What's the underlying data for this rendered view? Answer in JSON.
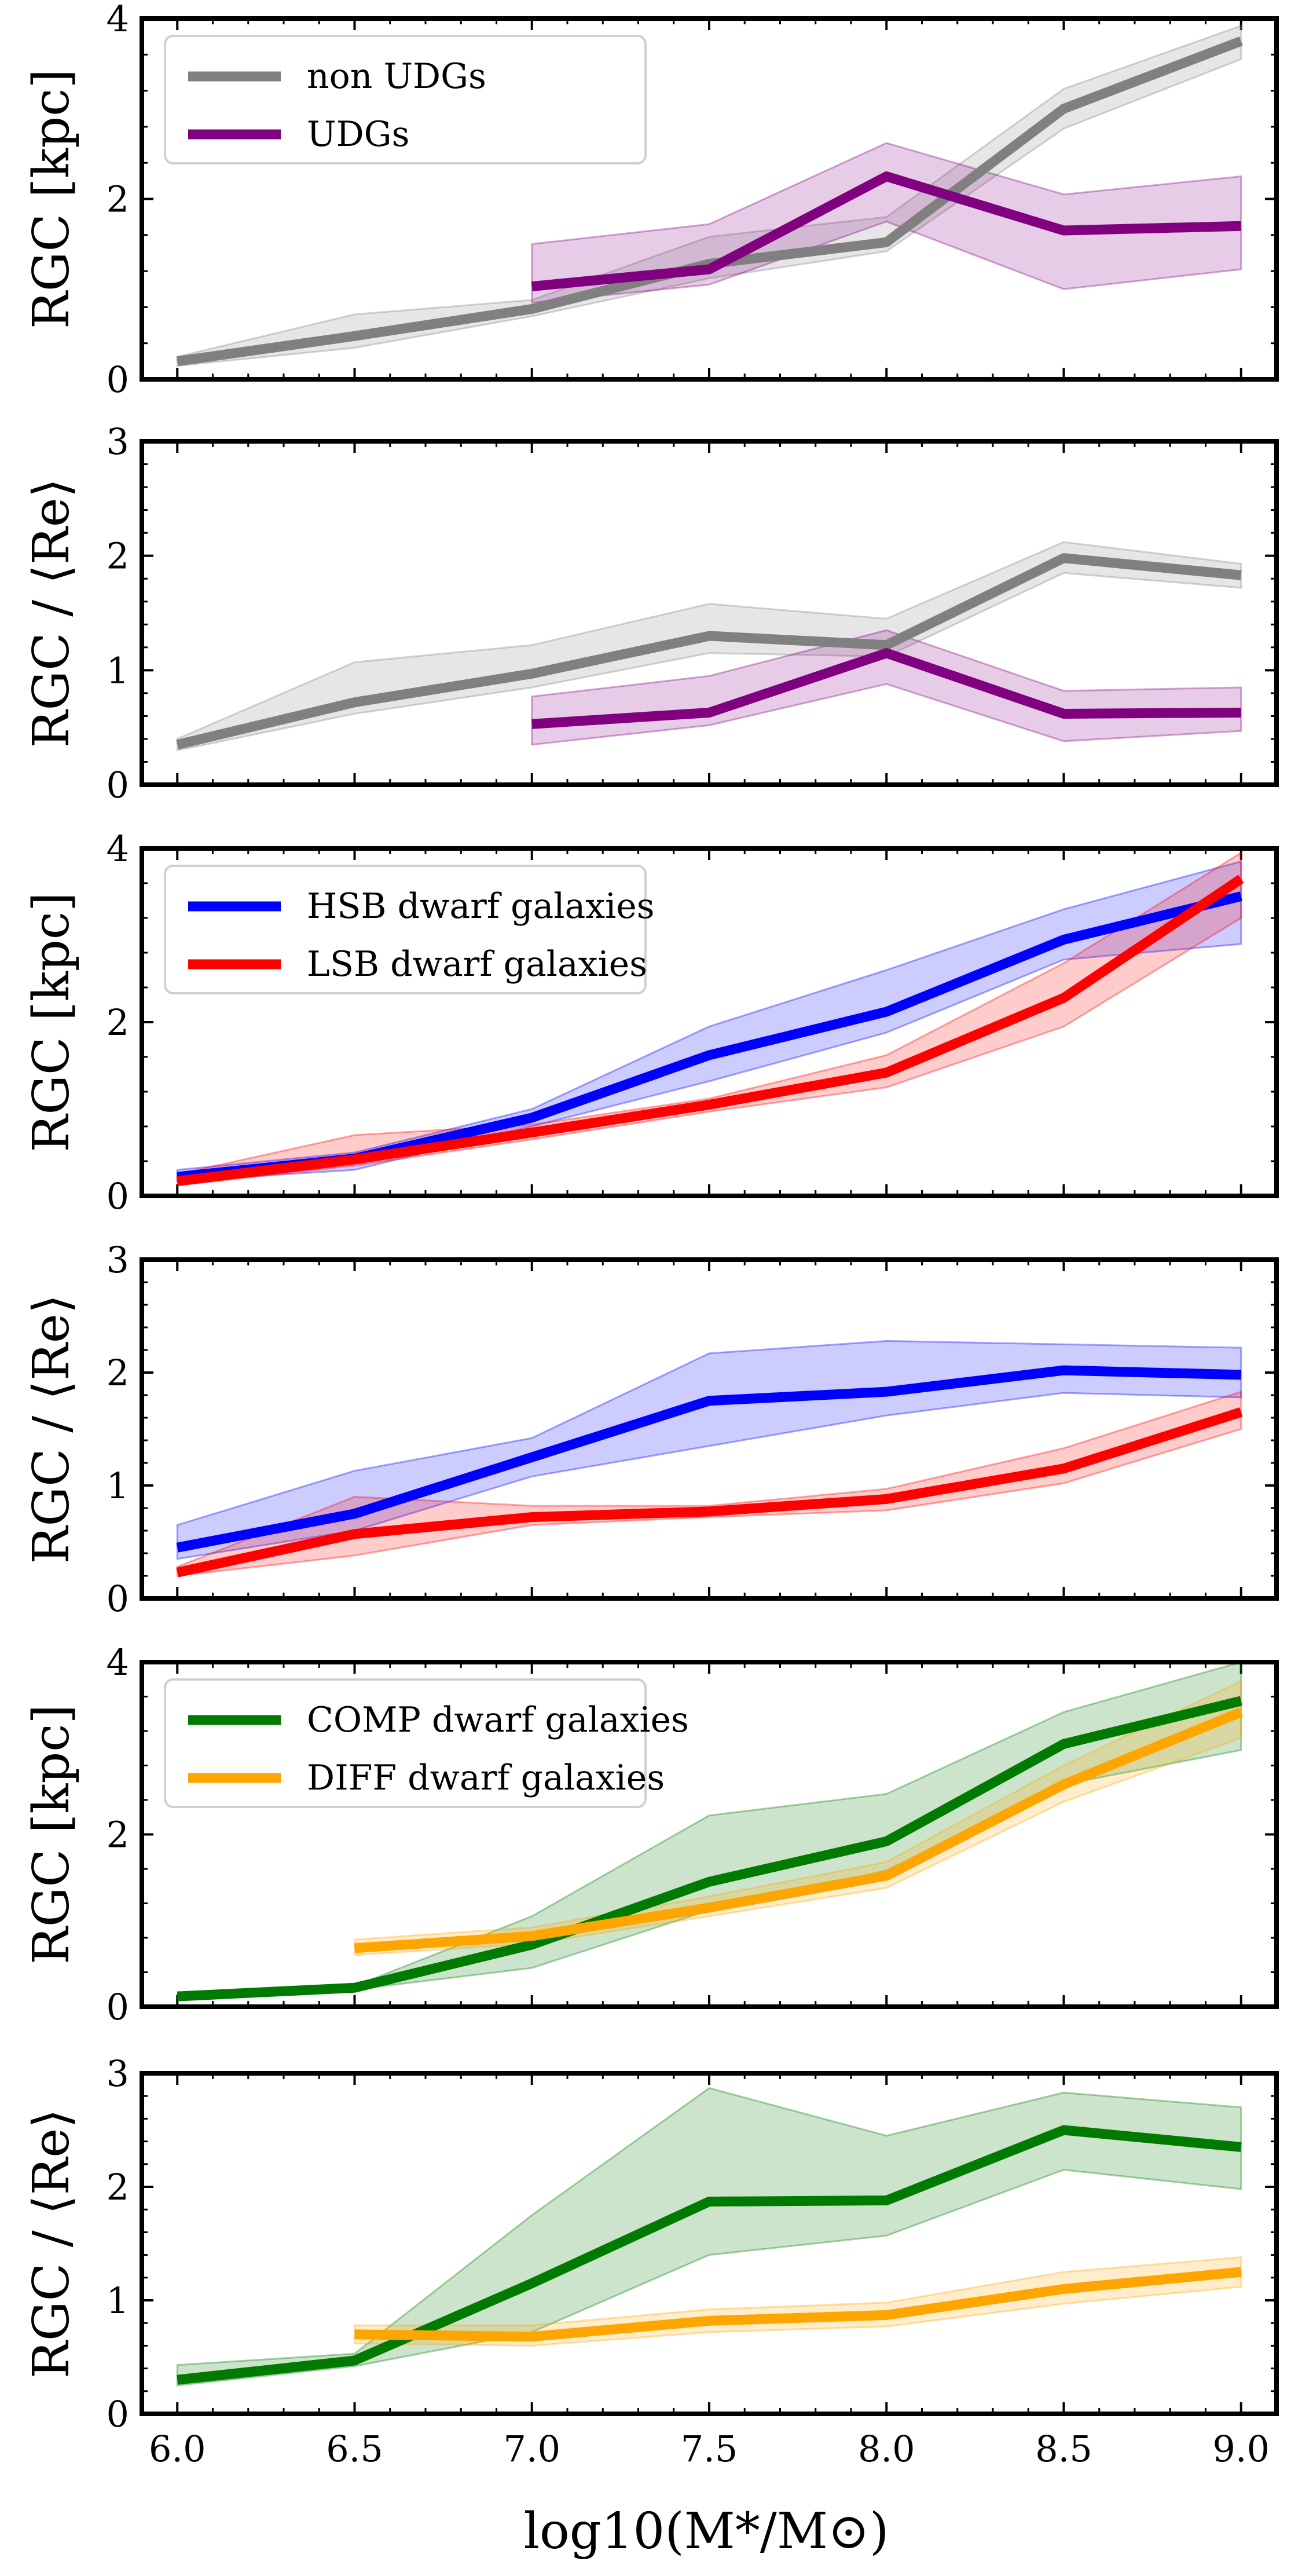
{
  "figure": {
    "xlabel": "log10(M*/M⊙)",
    "xlim": [
      5.9,
      9.1
    ],
    "xticks": [
      6.0,
      6.5,
      7.0,
      7.5,
      8.0,
      8.5,
      9.0
    ],
    "xtick_labels": [
      "6.0",
      "6.5",
      "7.0",
      "7.5",
      "8.0",
      "8.5",
      "9.0"
    ]
  },
  "chart_data": [
    {
      "type": "line",
      "panel": 1,
      "ylabel": "RGC [kpc]",
      "ylim": [
        0,
        4
      ],
      "yticks": [
        0,
        2,
        4
      ],
      "ytick_labels": [
        "0",
        "2",
        "4"
      ],
      "legend": "top-left",
      "series": [
        {
          "name": "non UDGs",
          "color": "#808080",
          "x": [
            6.0,
            6.5,
            7.0,
            7.5,
            8.0,
            8.5,
            9.0
          ],
          "y": [
            0.2,
            0.48,
            0.78,
            1.28,
            1.52,
            3.0,
            3.75
          ],
          "lower": [
            0.15,
            0.35,
            0.7,
            1.12,
            1.42,
            2.78,
            3.55
          ],
          "upper": [
            0.25,
            0.72,
            0.88,
            1.58,
            1.8,
            3.22,
            3.92
          ]
        },
        {
          "name": "UDGs",
          "color": "#800080",
          "x": [
            7.0,
            7.5,
            8.0,
            8.5,
            9.0
          ],
          "y": [
            1.03,
            1.22,
            2.25,
            1.65,
            1.7
          ],
          "lower": [
            0.85,
            1.05,
            1.75,
            1.0,
            1.22
          ],
          "upper": [
            1.5,
            1.72,
            2.62,
            2.05,
            2.25
          ]
        }
      ]
    },
    {
      "type": "line",
      "panel": 2,
      "ylabel": "RGC / ⟨Re⟩",
      "ylim": [
        0,
        3
      ],
      "yticks": [
        0,
        1,
        2,
        3
      ],
      "ytick_labels": [
        "0",
        "1",
        "2",
        "3"
      ],
      "series": [
        {
          "name": "non UDGs",
          "color": "#808080",
          "x": [
            6.0,
            6.5,
            7.0,
            7.5,
            8.0,
            8.5,
            9.0
          ],
          "y": [
            0.35,
            0.72,
            0.97,
            1.3,
            1.22,
            1.98,
            1.83
          ],
          "lower": [
            0.3,
            0.62,
            0.85,
            1.15,
            1.12,
            1.85,
            1.72
          ],
          "upper": [
            0.4,
            1.07,
            1.22,
            1.58,
            1.45,
            2.12,
            1.93
          ]
        },
        {
          "name": "UDGs",
          "color": "#800080",
          "x": [
            7.0,
            7.5,
            8.0,
            8.5,
            9.0
          ],
          "y": [
            0.53,
            0.63,
            1.15,
            0.62,
            0.63
          ],
          "lower": [
            0.35,
            0.52,
            0.88,
            0.38,
            0.47
          ],
          "upper": [
            0.77,
            0.95,
            1.35,
            0.82,
            0.85
          ]
        }
      ]
    },
    {
      "type": "line",
      "panel": 3,
      "ylabel": "RGC [kpc]",
      "ylim": [
        0,
        4
      ],
      "yticks": [
        0,
        2,
        4
      ],
      "ytick_labels": [
        "0",
        "2",
        "4"
      ],
      "legend": "top-left",
      "series": [
        {
          "name": "HSB dwarf galaxies",
          "color": "#0000ff",
          "x": [
            6.0,
            6.5,
            7.0,
            7.5,
            8.0,
            8.5,
            9.0
          ],
          "y": [
            0.22,
            0.43,
            0.9,
            1.62,
            2.12,
            2.95,
            3.45
          ],
          "lower": [
            0.17,
            0.3,
            0.8,
            1.32,
            1.88,
            2.72,
            2.9
          ],
          "upper": [
            0.3,
            0.5,
            1.0,
            1.95,
            2.6,
            3.3,
            3.85
          ]
        },
        {
          "name": "LSB dwarf galaxies",
          "color": "#ff0000",
          "x": [
            6.0,
            6.5,
            7.0,
            7.5,
            8.0,
            8.5,
            9.0
          ],
          "y": [
            0.17,
            0.42,
            0.73,
            1.05,
            1.42,
            2.28,
            3.65
          ],
          "lower": [
            0.12,
            0.35,
            0.65,
            0.97,
            1.25,
            1.95,
            3.2
          ],
          "upper": [
            0.25,
            0.7,
            0.82,
            1.12,
            1.62,
            2.68,
            3.95
          ]
        }
      ]
    },
    {
      "type": "line",
      "panel": 4,
      "ylabel": "RGC / ⟨Re⟩",
      "ylim": [
        0,
        3
      ],
      "yticks": [
        0,
        1,
        2,
        3
      ],
      "ytick_labels": [
        "0",
        "1",
        "2",
        "3"
      ],
      "series": [
        {
          "name": "HSB dwarf galaxies",
          "color": "#0000ff",
          "x": [
            6.0,
            6.5,
            7.0,
            7.5,
            8.0,
            8.5,
            9.0
          ],
          "y": [
            0.45,
            0.75,
            1.25,
            1.75,
            1.83,
            2.02,
            1.98
          ],
          "lower": [
            0.35,
            0.6,
            1.08,
            1.35,
            1.62,
            1.82,
            1.78
          ],
          "upper": [
            0.65,
            1.13,
            1.42,
            2.17,
            2.28,
            2.25,
            2.22
          ]
        },
        {
          "name": "LSB dwarf galaxies",
          "color": "#ff0000",
          "x": [
            6.0,
            6.5,
            7.0,
            7.5,
            8.0,
            8.5,
            9.0
          ],
          "y": [
            0.23,
            0.57,
            0.72,
            0.77,
            0.88,
            1.15,
            1.65
          ],
          "lower": [
            0.2,
            0.38,
            0.65,
            0.72,
            0.78,
            1.02,
            1.5
          ],
          "upper": [
            0.28,
            0.9,
            0.82,
            0.82,
            0.97,
            1.33,
            1.83
          ]
        }
      ]
    },
    {
      "type": "line",
      "panel": 5,
      "ylabel": "RGC [kpc]",
      "ylim": [
        0,
        4
      ],
      "yticks": [
        0,
        2,
        4
      ],
      "ytick_labels": [
        "0",
        "2",
        "4"
      ],
      "legend": "top-left",
      "series": [
        {
          "name": "COMP dwarf galaxies",
          "color": "#007a00",
          "x": [
            6.0,
            6.5,
            7.0,
            7.5,
            8.0,
            8.5,
            9.0
          ],
          "y": [
            0.12,
            0.22,
            0.72,
            1.45,
            1.92,
            3.05,
            3.55
          ],
          "lower": [
            0.1,
            0.2,
            0.45,
            1.12,
            1.58,
            2.58,
            2.98
          ],
          "upper": [
            0.14,
            0.24,
            1.05,
            2.22,
            2.47,
            3.42,
            4.0
          ]
        },
        {
          "name": "DIFF dwarf galaxies",
          "color": "#ffa500",
          "x": [
            6.5,
            7.0,
            7.5,
            8.0,
            8.5,
            9.0
          ],
          "y": [
            0.68,
            0.82,
            1.15,
            1.52,
            2.58,
            3.42
          ],
          "lower": [
            0.6,
            0.73,
            1.05,
            1.38,
            2.38,
            3.12
          ],
          "upper": [
            0.78,
            0.92,
            1.28,
            1.68,
            2.8,
            3.78
          ]
        }
      ]
    },
    {
      "type": "line",
      "panel": 6,
      "ylabel": "RGC / ⟨Re⟩",
      "ylim": [
        0,
        3
      ],
      "yticks": [
        0,
        1,
        2,
        3
      ],
      "ytick_labels": [
        "0",
        "1",
        "2",
        "3"
      ],
      "series": [
        {
          "name": "COMP dwarf galaxies",
          "color": "#007a00",
          "x": [
            6.0,
            6.5,
            7.0,
            7.5,
            8.0,
            8.5,
            9.0
          ],
          "y": [
            0.3,
            0.47,
            1.15,
            1.87,
            1.88,
            2.5,
            2.35
          ],
          "lower": [
            0.25,
            0.42,
            0.72,
            1.4,
            1.57,
            2.15,
            1.98
          ],
          "upper": [
            0.43,
            0.53,
            1.75,
            2.87,
            2.45,
            2.83,
            2.7
          ]
        },
        {
          "name": "DIFF dwarf galaxies",
          "color": "#ffa500",
          "x": [
            6.5,
            7.0,
            7.5,
            8.0,
            8.5,
            9.0
          ],
          "y": [
            0.7,
            0.68,
            0.82,
            0.87,
            1.1,
            1.25
          ],
          "lower": [
            0.62,
            0.6,
            0.72,
            0.77,
            0.97,
            1.12
          ],
          "upper": [
            0.78,
            0.78,
            0.92,
            0.98,
            1.25,
            1.38
          ]
        }
      ]
    }
  ]
}
